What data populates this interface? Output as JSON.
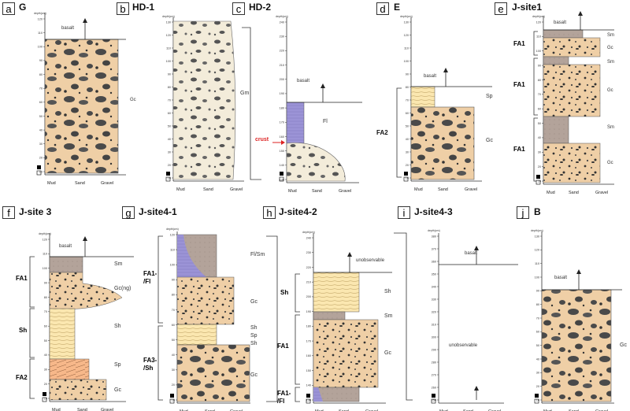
{
  "panels": [
    {
      "letter": "a",
      "title": "G"
    },
    {
      "letter": "b",
      "title": "HD-1"
    },
    {
      "letter": "c",
      "title": "HD-2"
    },
    {
      "letter": "d",
      "title": "E"
    },
    {
      "letter": "e",
      "title": "J-site1"
    },
    {
      "letter": "f",
      "title": "J-site 3"
    },
    {
      "letter": "g",
      "title": "J-site4-1"
    },
    {
      "letter": "h",
      "title": "J-site4-2"
    },
    {
      "letter": "i",
      "title": "J-site4-3"
    },
    {
      "letter": "j",
      "title": "B"
    }
  ],
  "axis": {
    "depth_label": "depth(cm)",
    "grain_labels": [
      "Mud",
      "Sand",
      "Gravel"
    ]
  },
  "labels": {
    "basalt": "basalt",
    "unobservable": "unobservable",
    "crust": "crust",
    "Gc": "Gc",
    "Gm": "Gm",
    "Fl": "Fl",
    "Sp": "Sp",
    "Sm": "Sm",
    "Sh": "Sh",
    "Gc_ng": "Gc(ng)",
    "Fl_Sm": "Fl/Sm",
    "FA1": "FA1",
    "FA2": "FA2",
    "FA1_Fl": "FA1-\n/Fl",
    "FA3_Sh": "FA3-\n/Sh",
    "Sh_code": "Sh"
  },
  "ticks": {
    "a": [
      "120",
      "110",
      "100",
      "90",
      "80",
      "70",
      "60",
      "50",
      "40",
      "30",
      "20",
      "10"
    ],
    "b": [
      "130",
      "120",
      "110",
      "100",
      "90",
      "80",
      "70",
      "60",
      "50",
      "40",
      "30",
      "20",
      "10"
    ],
    "c": [
      "240",
      "230",
      "220",
      "210",
      "200",
      "190",
      "180",
      "170",
      "160",
      "150",
      "140",
      "130"
    ],
    "d": [
      "130",
      "120",
      "110",
      "100",
      "90",
      "80",
      "70",
      "60",
      "50",
      "40",
      "30",
      "20",
      "10"
    ],
    "e": [
      "120",
      "110",
      "100",
      "90",
      "80",
      "70",
      "60",
      "50",
      "40",
      "30",
      "20",
      "10"
    ],
    "f": [
      "120",
      "110",
      "100",
      "90",
      "80",
      "70",
      "60",
      "50",
      "40",
      "30",
      "20",
      "10"
    ],
    "g": [
      "120",
      "110",
      "100",
      "90",
      "80",
      "70",
      "60",
      "50",
      "40",
      "30",
      "20",
      "10"
    ],
    "h": [
      "240",
      "230",
      "220",
      "210",
      "200",
      "190",
      "180",
      "170",
      "160",
      "150",
      "140",
      "130"
    ],
    "i": [
      "380",
      "370",
      "360",
      "350",
      "340",
      "330",
      "320",
      "310",
      "300",
      "290",
      "280",
      "270",
      "260",
      "250"
    ],
    "j": [
      "130",
      "120",
      "110",
      "100",
      "90",
      "80",
      "70",
      "60",
      "50",
      "40",
      "30",
      "20",
      "10"
    ]
  }
}
